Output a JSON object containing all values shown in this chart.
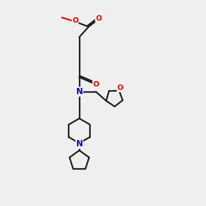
{
  "bg_color": "#efefef",
  "bond_color": "#1a1a1a",
  "N_color": "#0000ee",
  "O_color": "#ee0000",
  "lw": 1.6,
  "figsize": [
    3.0,
    3.0
  ],
  "dpi": 100,
  "xlim": [
    0,
    10
  ],
  "ylim": [
    0,
    10
  ]
}
